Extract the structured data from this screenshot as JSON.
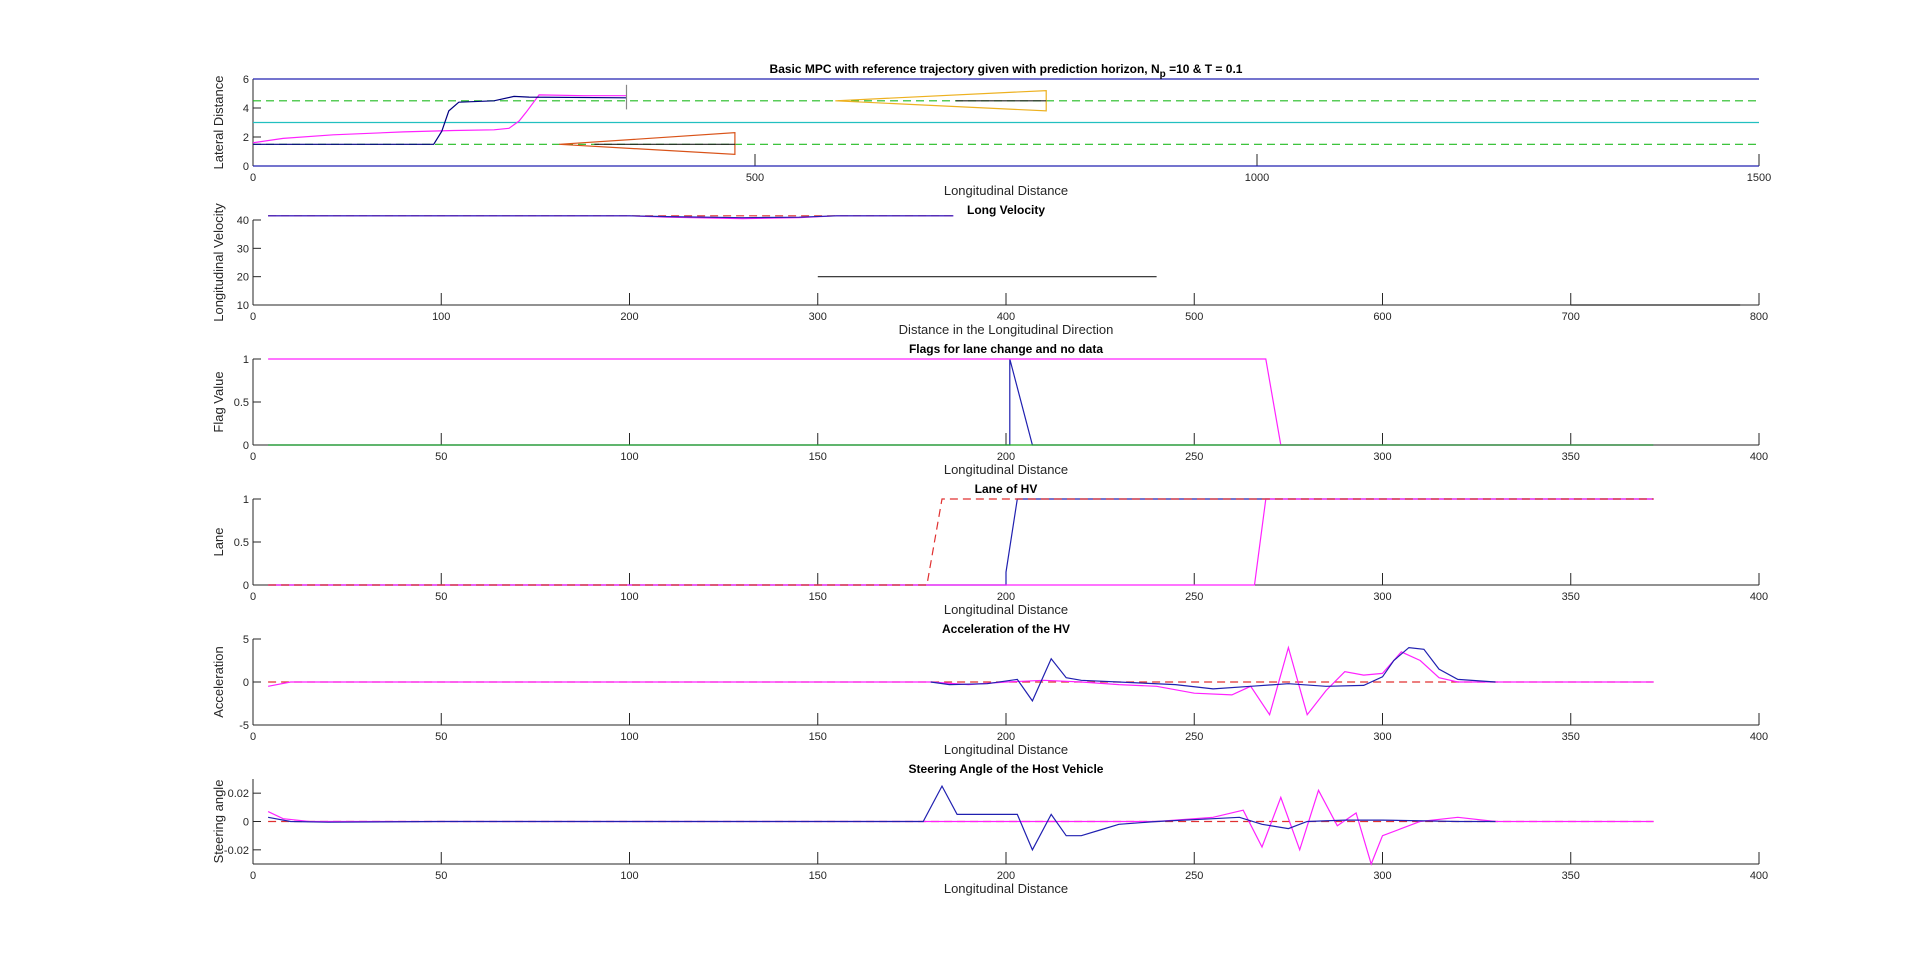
{
  "figure": {
    "background": "#ffffff",
    "axis_color": "#262626"
  },
  "chart_data": [
    {
      "id": "lateral",
      "type": "line",
      "title": "Basic MPC with reference trajectory given with prediction horizon, N",
      "title_subscript": "p",
      "title_suffix": " =10 & T = 0.1",
      "xlabel": "Longitudinal Distance",
      "ylabel": "Lateral Distance",
      "xlim": [
        0,
        1500
      ],
      "ylim": [
        0,
        6
      ],
      "xticks": [
        0,
        500,
        1000,
        1500
      ],
      "yticks": [
        0,
        2,
        4,
        6
      ],
      "series": [
        {
          "color": "#2020b0",
          "style": "solid",
          "x": [
            0,
            1500
          ],
          "y": [
            6,
            6
          ]
        },
        {
          "color": "#2020b0",
          "style": "solid",
          "x": [
            0,
            1500
          ],
          "y": [
            0,
            0
          ]
        },
        {
          "color": "#22c0c0",
          "style": "solid",
          "x": [
            0,
            1500
          ],
          "y": [
            3,
            3
          ]
        },
        {
          "color": "#22bb22",
          "style": "dashed",
          "x": [
            0,
            1500
          ],
          "y": [
            4.5,
            4.5
          ]
        },
        {
          "color": "#22bb22",
          "style": "dashed",
          "x": [
            0,
            1500
          ],
          "y": [
            1.5,
            1.5
          ]
        },
        {
          "color": "#ff22ff",
          "style": "solid",
          "x": [
            0,
            30,
            80,
            150,
            200,
            240,
            255,
            265,
            272,
            285,
            330,
            372
          ],
          "y": [
            1.6,
            1.9,
            2.15,
            2.35,
            2.45,
            2.5,
            2.6,
            3.1,
            3.7,
            4.9,
            4.85,
            4.85
          ]
        },
        {
          "color": "#000080",
          "style": "solid",
          "x": [
            0,
            180,
            188,
            195,
            205,
            240,
            260,
            275,
            372
          ],
          "y": [
            1.5,
            1.5,
            2.4,
            3.8,
            4.4,
            4.5,
            4.8,
            4.75,
            4.7
          ]
        },
        {
          "color": "#888888",
          "style": "solid",
          "x": [
            372,
            372
          ],
          "y": [
            3.9,
            5.6
          ]
        },
        {
          "color": "#d95319",
          "style": "solid",
          "x": [
            305,
            480,
            480,
            305
          ],
          "y": [
            1.5,
            2.3,
            0.8,
            1.5
          ]
        },
        {
          "color": "#edb120",
          "style": "solid",
          "x": [
            580,
            790,
            790,
            580
          ],
          "y": [
            4.5,
            5.2,
            3.8,
            4.5
          ]
        },
        {
          "color": "#222222",
          "style": "solid",
          "x": [
            340,
            480
          ],
          "y": [
            1.5,
            1.5
          ]
        },
        {
          "color": "#222222",
          "style": "solid",
          "x": [
            700,
            790
          ],
          "y": [
            4.5,
            4.5
          ]
        }
      ]
    },
    {
      "id": "velocity",
      "type": "line",
      "title": "Long Velocity",
      "xlabel": "Distance in the Longitudinal Direction",
      "ylabel": "Longitudinal Velocity",
      "xlim": [
        0,
        800
      ],
      "ylim": [
        10,
        40
      ],
      "xticks": [
        0,
        100,
        200,
        300,
        400,
        500,
        600,
        700,
        800
      ],
      "yticks": [
        10,
        20,
        30,
        40
      ],
      "series": [
        {
          "color": "#e03030",
          "style": "dashed",
          "x": [
            8,
            372
          ],
          "y": [
            41.5,
            41.5
          ]
        },
        {
          "color": "#ff22ff",
          "style": "solid",
          "x": [
            8,
            200,
            220,
            260,
            290,
            310,
            372
          ],
          "y": [
            41.5,
            41.5,
            41,
            40.5,
            40.8,
            41.5,
            41.5
          ]
        },
        {
          "color": "#2020b0",
          "style": "solid",
          "x": [
            8,
            200,
            220,
            260,
            290,
            310,
            372
          ],
          "y": [
            41.5,
            41.5,
            41.2,
            40.8,
            41,
            41.5,
            41.5
          ]
        },
        {
          "color": "#222222",
          "style": "solid",
          "x": [
            300,
            480
          ],
          "y": [
            20,
            20
          ]
        },
        {
          "color": "#222222",
          "style": "solid",
          "x": [
            700,
            790
          ],
          "y": [
            10,
            10
          ]
        }
      ]
    },
    {
      "id": "flags",
      "type": "line",
      "title": "Flags for lane change and no data",
      "xlabel": "Longitudinal Distance",
      "ylabel": "Flag Value",
      "xlim": [
        0,
        400
      ],
      "ylim": [
        0,
        1
      ],
      "xticks": [
        0,
        50,
        100,
        150,
        200,
        250,
        300,
        350,
        400
      ],
      "yticks": [
        0,
        0.5,
        1
      ],
      "series": [
        {
          "color": "#2020b0",
          "style": "solid",
          "x": [
            4,
            201,
            201,
            207,
            372
          ],
          "y": [
            0,
            0,
            1,
            0,
            0
          ]
        },
        {
          "color": "#ff22ff",
          "style": "solid",
          "x": [
            4,
            269,
            273,
            372
          ],
          "y": [
            1,
            1,
            0,
            0
          ]
        },
        {
          "color": "#22aa22",
          "style": "solid",
          "x": [
            4,
            372
          ],
          "y": [
            0,
            0
          ]
        }
      ]
    },
    {
      "id": "lane",
      "type": "line",
      "title": "Lane of HV",
      "xlabel": "Longitudinal Distance",
      "ylabel": "Lane",
      "xlim": [
        0,
        400
      ],
      "ylim": [
        0,
        1
      ],
      "xticks": [
        0,
        50,
        100,
        150,
        200,
        250,
        300,
        350,
        400
      ],
      "yticks": [
        0,
        0.5,
        1
      ],
      "series": [
        {
          "color": "#2020b0",
          "style": "solid",
          "x": [
            4,
            200,
            200,
            203,
            372
          ],
          "y": [
            0,
            0,
            0.15,
            1,
            1
          ]
        },
        {
          "color": "#ff22ff",
          "style": "solid",
          "x": [
            4,
            266,
            269,
            372
          ],
          "y": [
            0,
            0,
            1,
            1
          ]
        },
        {
          "color": "#e03030",
          "style": "dashed",
          "x": [
            4,
            179,
            183,
            372
          ],
          "y": [
            0,
            0,
            1,
            1
          ]
        }
      ]
    },
    {
      "id": "accel",
      "type": "line",
      "title": "Acceleration of the HV",
      "xlabel": "Longitudinal Distance",
      "ylabel": "Acceleration",
      "xlim": [
        0,
        400
      ],
      "ylim": [
        -5,
        5
      ],
      "xticks": [
        0,
        50,
        100,
        150,
        200,
        250,
        300,
        350,
        400
      ],
      "yticks": [
        -5,
        0,
        5
      ],
      "series": [
        {
          "color": "#e03030",
          "style": "dashed",
          "x": [
            4,
            372
          ],
          "y": [
            0,
            0
          ]
        },
        {
          "color": "#ff22ff",
          "style": "solid",
          "x": [
            4,
            10,
            20,
            180,
            190,
            200,
            210,
            220,
            230,
            240,
            250,
            260,
            265,
            270,
            275,
            280,
            285,
            290,
            295,
            300,
            305,
            310,
            315,
            320,
            330,
            372
          ],
          "y": [
            -0.5,
            0,
            0,
            0,
            -0.3,
            0,
            0.2,
            0,
            -0.3,
            -0.5,
            -1.3,
            -1.5,
            -0.5,
            -3.8,
            4,
            -3.8,
            -1,
            1.2,
            0.8,
            1,
            3.5,
            2.5,
            0.5,
            0,
            0,
            0
          ]
        },
        {
          "color": "#2020b0",
          "style": "solid",
          "x": [
            180,
            185,
            195,
            203,
            207,
            212,
            216,
            220,
            235,
            245,
            255,
            265,
            275,
            285,
            295,
            300,
            303,
            307,
            311,
            315,
            320,
            330
          ],
          "y": [
            0,
            -0.3,
            -0.2,
            0.3,
            -2.2,
            2.7,
            0.5,
            0.2,
            -0.1,
            -0.3,
            -0.8,
            -0.5,
            -0.2,
            -0.5,
            -0.4,
            0.6,
            2.5,
            4,
            3.8,
            1.5,
            0.3,
            0
          ]
        }
      ]
    },
    {
      "id": "steer",
      "type": "line",
      "title": "Steering Angle of the Host Vehicle",
      "xlabel": "Longitudinal Distance",
      "ylabel": "Steering angle",
      "xlim": [
        0,
        400
      ],
      "ylim": [
        -0.03,
        0.03
      ],
      "xticks": [
        0,
        50,
        100,
        150,
        200,
        250,
        300,
        350,
        400
      ],
      "yticks": [
        -0.02,
        0,
        0.02
      ],
      "ytick_labels": [
        "-0.02",
        "0",
        "0.02"
      ],
      "series": [
        {
          "color": "#e03030",
          "style": "dashed",
          "x": [
            4,
            372
          ],
          "y": [
            0,
            0
          ]
        },
        {
          "color": "#ff22ff",
          "style": "solid",
          "x": [
            4,
            8,
            15,
            50,
            200,
            240,
            255,
            263,
            268,
            273,
            278,
            283,
            288,
            293,
            297,
            300,
            305,
            310,
            320,
            330,
            372
          ],
          "y": [
            0.007,
            0.002,
            0,
            0,
            0,
            0,
            0.003,
            0.008,
            -0.018,
            0.017,
            -0.02,
            0.022,
            -0.003,
            0.006,
            -0.03,
            -0.01,
            -0.005,
            0,
            0.003,
            0,
            0
          ]
        },
        {
          "color": "#2020b0",
          "style": "solid",
          "x": [
            4,
            10,
            20,
            50,
            178,
            183,
            187,
            195,
            203,
            207,
            212,
            216,
            220,
            225,
            230,
            240,
            255,
            262,
            268,
            275,
            280,
            290,
            300,
            320,
            330
          ],
          "y": [
            0.003,
            0,
            -0.0005,
            0,
            0,
            0.025,
            0.005,
            0.005,
            0.005,
            -0.02,
            0.005,
            -0.01,
            -0.01,
            -0.006,
            -0.002,
            0,
            0.002,
            0.003,
            -0.002,
            -0.005,
            0,
            0.001,
            0.001,
            0,
            0
          ]
        }
      ]
    }
  ]
}
